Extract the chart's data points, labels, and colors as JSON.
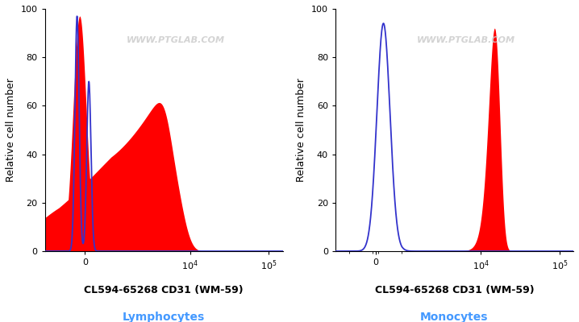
{
  "title_left_line1": "CL594-65268 CD31 (WM-59)",
  "title_left_line2": "Lymphocytes",
  "title_right_line1": "CL594-65268 CD31 (WM-59)",
  "title_right_line2": "Monocytes",
  "ylabel": "Relative cell number",
  "ylim": [
    0,
    100
  ],
  "watermark": "WWW.PTGLAB.COM",
  "background_color": "#ffffff",
  "red_fill_color": "#ff0000",
  "blue_line_color": "#3333cc",
  "linthresh": 1000,
  "xlim_left": -1500,
  "xlim_right": 150000
}
